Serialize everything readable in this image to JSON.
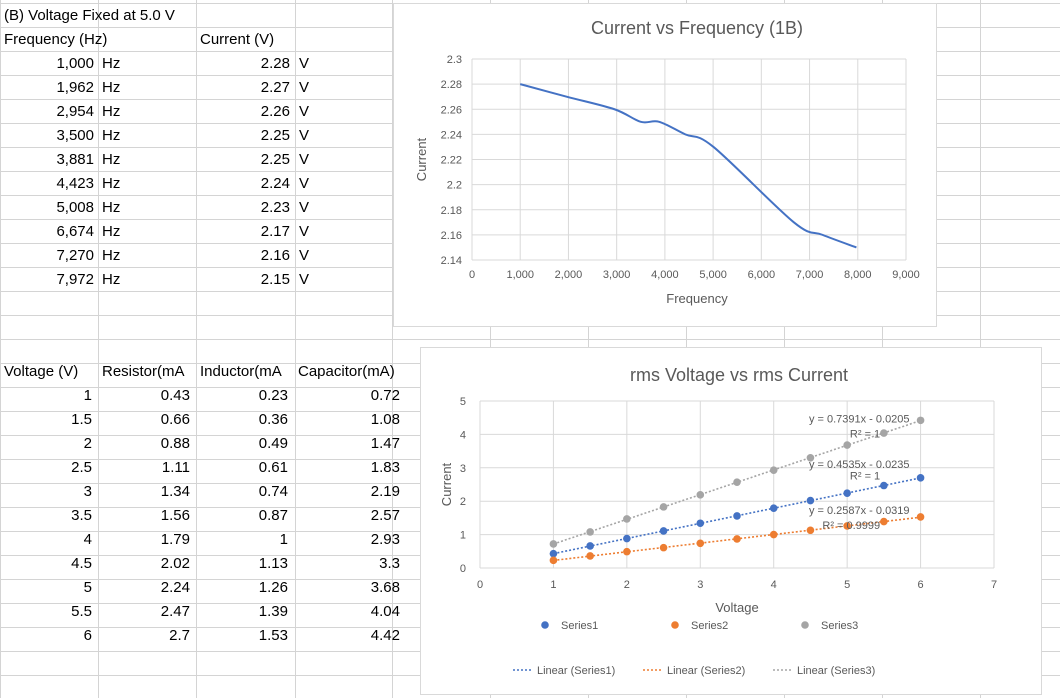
{
  "table1": {
    "title": "(B) Voltage Fixed at 5.0 V",
    "header_frequency": "Frequency (Hz)",
    "header_current": "Current (V)",
    "rows": [
      {
        "freq": "1,000",
        "freq_unit": "Hz",
        "current": "2.28",
        "current_unit": "V"
      },
      {
        "freq": "1,962",
        "freq_unit": "Hz",
        "current": "2.27",
        "current_unit": "V"
      },
      {
        "freq": "2,954",
        "freq_unit": "Hz",
        "current": "2.26",
        "current_unit": "V"
      },
      {
        "freq": "3,500",
        "freq_unit": "Hz",
        "current": "2.25",
        "current_unit": "V"
      },
      {
        "freq": "3,881",
        "freq_unit": "Hz",
        "current": "2.25",
        "current_unit": "V"
      },
      {
        "freq": "4,423",
        "freq_unit": "Hz",
        "current": "2.24",
        "current_unit": "V"
      },
      {
        "freq": "5,008",
        "freq_unit": "Hz",
        "current": "2.23",
        "current_unit": "V"
      },
      {
        "freq": "6,674",
        "freq_unit": "Hz",
        "current": "2.17",
        "current_unit": "V"
      },
      {
        "freq": "7,270",
        "freq_unit": "Hz",
        "current": "2.16",
        "current_unit": "V"
      },
      {
        "freq": "7,972",
        "freq_unit": "Hz",
        "current": "2.15",
        "current_unit": "V"
      }
    ]
  },
  "table2": {
    "headers": [
      "Voltage (V)",
      "Resistor(mA",
      "Inductor(mA",
      "Capacitor(mA)"
    ],
    "rows": [
      [
        "1",
        "0.43",
        "0.23",
        "0.72"
      ],
      [
        "1.5",
        "0.66",
        "0.36",
        "1.08"
      ],
      [
        "2",
        "0.88",
        "0.49",
        "1.47"
      ],
      [
        "2.5",
        "1.11",
        "0.61",
        "1.83"
      ],
      [
        "3",
        "1.34",
        "0.74",
        "2.19"
      ],
      [
        "3.5",
        "1.56",
        "0.87",
        "2.57"
      ],
      [
        "4",
        "1.79",
        "1",
        "2.93"
      ],
      [
        "4.5",
        "2.02",
        "1.13",
        "3.3"
      ],
      [
        "5",
        "2.24",
        "1.26",
        "3.68"
      ],
      [
        "5.5",
        "2.47",
        "1.39",
        "4.04"
      ],
      [
        "6",
        "2.7",
        "1.53",
        "4.42"
      ]
    ]
  },
  "chart_data": [
    {
      "type": "line",
      "title": "Current vs Frequency (1B)",
      "xlabel": "Frequency",
      "ylabel": "Current",
      "xlim": [
        0,
        9000
      ],
      "ylim": [
        2.14,
        2.3
      ],
      "x_ticks": [
        "0",
        "1,000",
        "2,000",
        "3,000",
        "4,000",
        "5,000",
        "6,000",
        "7,000",
        "8,000",
        "9,000"
      ],
      "y_ticks": [
        "2.14",
        "2.16",
        "2.18",
        "2.2",
        "2.22",
        "2.24",
        "2.26",
        "2.28",
        "2.3"
      ],
      "grid": true,
      "legend": "none",
      "color": "#4472c4",
      "series": [
        {
          "x": [
            1000,
            1962,
            2954,
            3500,
            3881,
            4423,
            5008,
            6674,
            7270,
            7972
          ],
          "y": [
            2.28,
            2.27,
            2.26,
            2.25,
            2.25,
            2.24,
            2.23,
            2.17,
            2.16,
            2.15
          ]
        }
      ]
    },
    {
      "type": "scatter",
      "title": "rms Voltage vs rms Current",
      "xlabel": "Voltage",
      "ylabel": "Current",
      "xlim": [
        0,
        7
      ],
      "ylim": [
        0,
        5
      ],
      "x_ticks": [
        "0",
        "1",
        "2",
        "3",
        "4",
        "5",
        "6",
        "7"
      ],
      "y_ticks": [
        "0",
        "1",
        "2",
        "3",
        "4",
        "5"
      ],
      "grid": true,
      "legend": "bottom",
      "x": [
        1,
        1.5,
        2,
        2.5,
        3,
        3.5,
        4,
        4.5,
        5,
        5.5,
        6
      ],
      "series": [
        {
          "name": "Series1",
          "color": "#4472c4",
          "values": [
            0.43,
            0.66,
            0.88,
            1.11,
            1.34,
            1.56,
            1.79,
            2.02,
            2.24,
            2.47,
            2.7
          ]
        },
        {
          "name": "Series2",
          "color": "#ed7d31",
          "values": [
            0.23,
            0.36,
            0.49,
            0.61,
            0.74,
            0.87,
            1,
            1.13,
            1.26,
            1.39,
            1.53
          ]
        },
        {
          "name": "Series3",
          "color": "#a5a5a5",
          "values": [
            0.72,
            1.08,
            1.47,
            1.83,
            2.19,
            2.57,
            2.93,
            3.3,
            3.68,
            4.04,
            4.42
          ]
        }
      ],
      "trendlines": [
        {
          "name": "Linear (Series1)",
          "color": "#4472c4",
          "slope": 0.4535,
          "intercept": -0.0235,
          "equation": "y = 0.4535x - 0.0235",
          "r2": "R² = 1"
        },
        {
          "name": "Linear (Series2)",
          "color": "#ed7d31",
          "slope": 0.2587,
          "intercept": -0.0319,
          "equation": "y = 0.2587x - 0.0319",
          "r2": "R² = 0.9999"
        },
        {
          "name": "Linear (Series3)",
          "color": "#a5a5a5",
          "slope": 0.7391,
          "intercept": -0.0205,
          "equation": "y = 0.7391x - 0.0205",
          "r2": "R² = 1"
        }
      ]
    }
  ]
}
